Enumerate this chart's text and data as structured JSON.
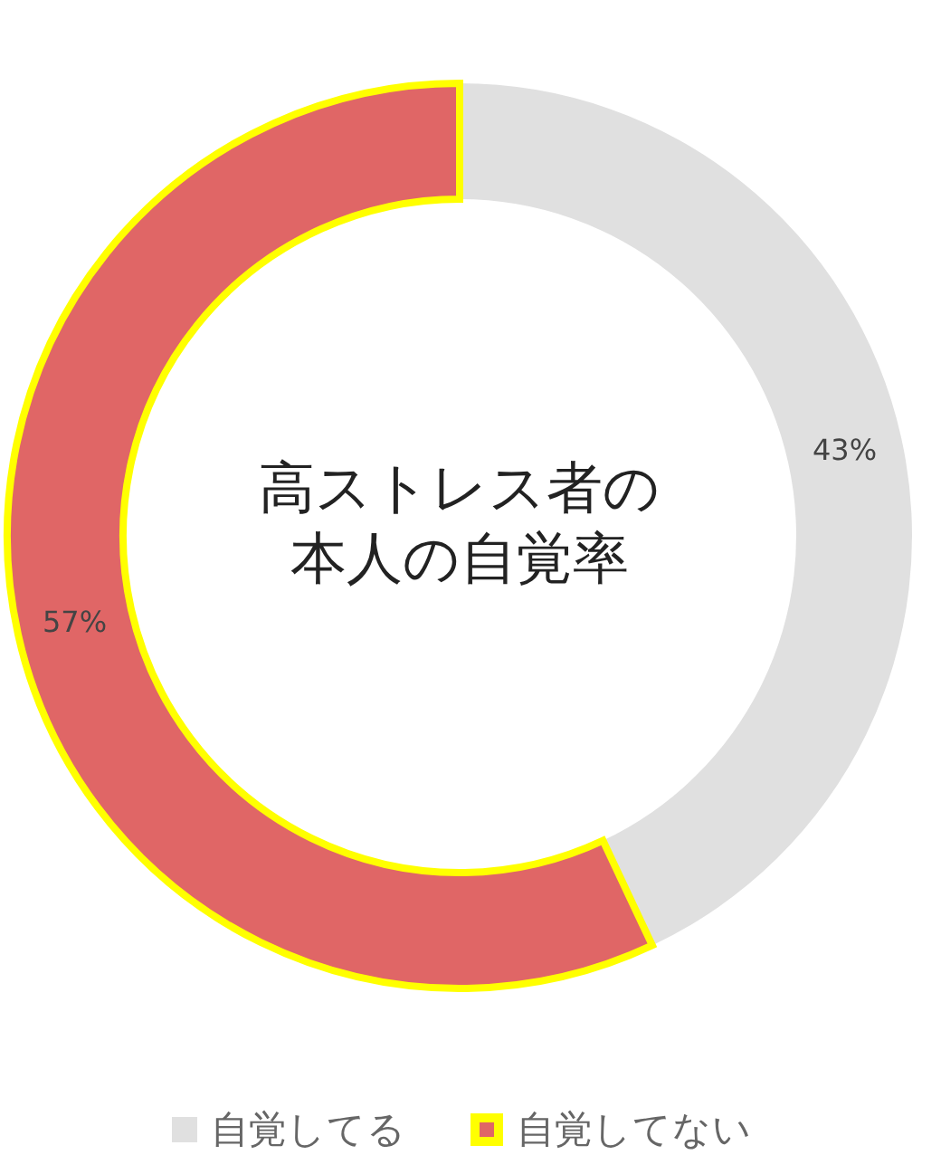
{
  "chart_data": {
    "type": "donut",
    "title": "高ストレス者の本人の自覚率",
    "categories": [
      "自覚してる",
      "自覚してない"
    ],
    "values": [
      43,
      57
    ],
    "colors": [
      "#e0e0e0",
      "#e06666"
    ],
    "value_labels": [
      "43%",
      "57%"
    ],
    "legend": "bottom"
  }
}
